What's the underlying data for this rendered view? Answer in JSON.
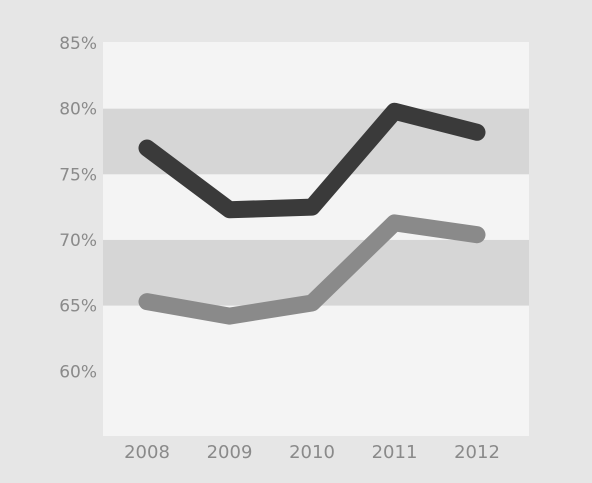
{
  "chart_data": {
    "type": "line",
    "categories": [
      "2008",
      "2009",
      "2010",
      "2011",
      "2012"
    ],
    "series": [
      {
        "values": [
          77.0,
          72.3,
          72.5,
          79.8,
          78.2
        ],
        "color": "#3a3a3a"
      },
      {
        "values": [
          65.3,
          64.2,
          65.2,
          71.3,
          70.4
        ],
        "color": "#8a8a8a"
      }
    ],
    "y_ticks": [
      "85%",
      "80%",
      "75%",
      "70%",
      "65%",
      "60%"
    ],
    "ylim": [
      55,
      86
    ],
    "grid": "alternating bands"
  },
  "colors": {
    "background": "#e6e6e6",
    "plot_light": "#f4f4f4",
    "plot_band": "#d6d6d6",
    "tick_text": "#8a8a8a"
  }
}
